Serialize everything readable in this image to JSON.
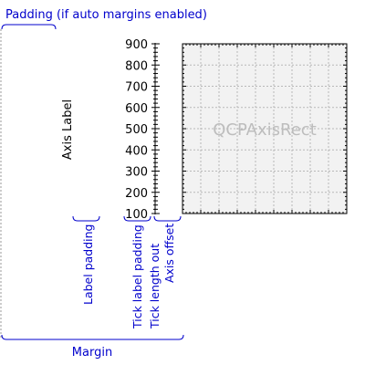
{
  "diagram": {
    "padding_label": "Padding (if auto margins enabled)",
    "margin_label": "Margin",
    "axis_label": "Axis Label",
    "rect_label": "QCPAxisRect",
    "annotations": {
      "label_padding": "Label padding",
      "tick_label_padding": "Tick label padding",
      "tick_length_out": "Tick length out",
      "axis_offset": "Axis offset"
    },
    "tick_labels": [
      "900",
      "800",
      "700",
      "600",
      "500",
      "400",
      "300",
      "200",
      "100"
    ]
  },
  "colors": {
    "annotation": "#0000cc",
    "rect_fill": "#f2f2f2",
    "rect_label": "#bdbdbd",
    "grid": "#b8b8b8"
  }
}
